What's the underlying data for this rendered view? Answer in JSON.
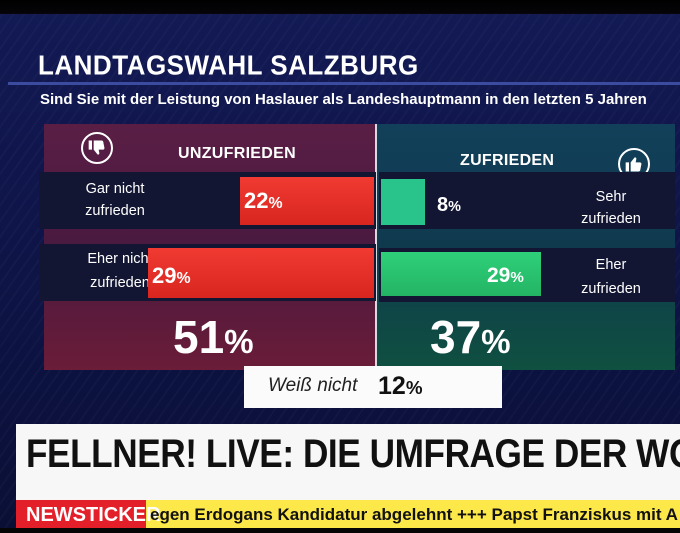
{
  "title": "LANDTAGSWAHL SALZBURG",
  "question": "Sind Sie mit der Leistung von Haslauer als Landeshauptmann in den letzten 5 Jahren",
  "headers": {
    "left": "UNZUFRIEDEN",
    "right": "ZUFRIEDEN"
  },
  "icons": {
    "left": "thumbs-down-icon",
    "right": "thumbs-up-icon"
  },
  "rows": [
    {
      "left_label_1": "Gar nicht",
      "left_label_2": "zufrieden",
      "left_value": "22",
      "right_value": "8",
      "right_label_1": "Sehr",
      "right_label_2": "zufrieden"
    },
    {
      "left_label_1": "Eher nicht",
      "left_label_2": "zufrieden",
      "left_value": "29",
      "right_value": "29",
      "right_label_1": "Eher",
      "right_label_2": "zufrieden"
    }
  ],
  "totals": {
    "left": "51",
    "right": "37"
  },
  "percent_sign": "%",
  "unknown": {
    "label": "Weiß nicht",
    "value": "12"
  },
  "banner": "FELLNER! LIVE: DIE UMFRAGE DER WOCHE",
  "ticker": {
    "badge": "NEWSTICKER",
    "text": "egen Erdogans Kandidatur abgelehnt +++ Papst Franziskus mit A"
  },
  "colors": {
    "unzufrieden": "#e12a22",
    "zufrieden_sehr": "#29c48b",
    "zufrieden_eher": "#23b464",
    "background": "#0f1549",
    "ticker_badge": "#e3202a",
    "ticker_bar": "#fde84a"
  },
  "chart_data": {
    "type": "bar",
    "categories": [
      "Gar nicht zufrieden",
      "Eher nicht zufrieden",
      "Sehr zufrieden",
      "Eher zufrieden",
      "Weiß nicht"
    ],
    "series": [
      {
        "name": "UNZUFRIEDEN",
        "values": [
          22,
          29,
          null,
          null,
          null
        ]
      },
      {
        "name": "ZUFRIEDEN",
        "values": [
          null,
          null,
          8,
          29,
          null
        ]
      }
    ],
    "unknown": 12,
    "totals": {
      "UNZUFRIEDEN": 51,
      "ZUFRIEDEN": 37
    },
    "unit": "%",
    "orientation": "diverging-horizontal"
  }
}
